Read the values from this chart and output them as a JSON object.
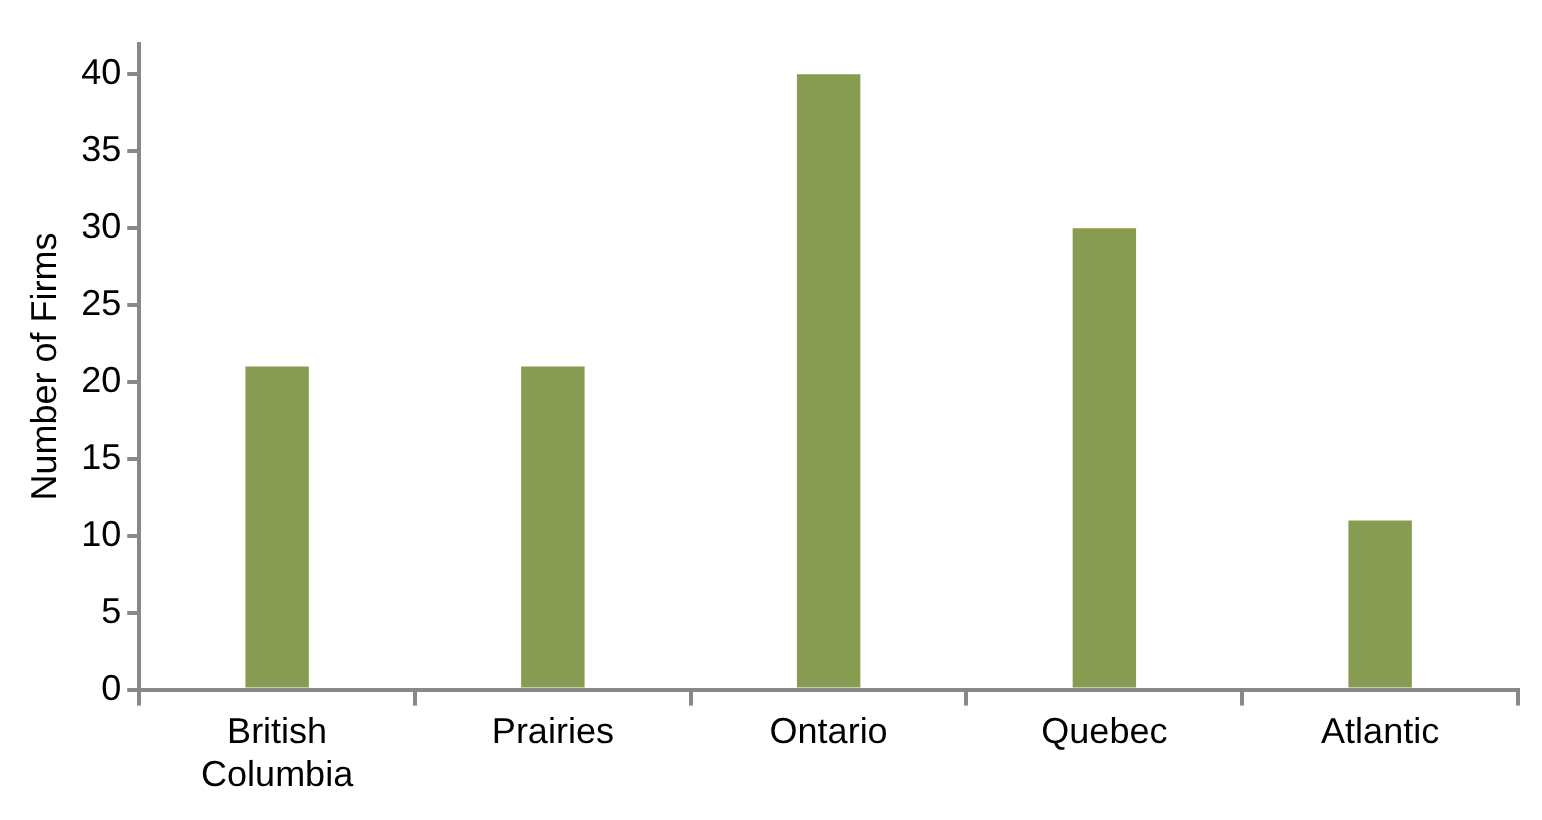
{
  "chart_data": {
    "type": "bar",
    "ylabel": "Number of Firms",
    "categories": [
      "British Columbia",
      "Prairies",
      "Ontario",
      "Quebec",
      "Atlantic"
    ],
    "values": [
      21,
      21,
      40,
      30,
      11
    ],
    "color": "#879c50",
    "ylim": [
      0,
      42
    ],
    "yticks": [
      0,
      5,
      10,
      15,
      20,
      25,
      30,
      35,
      40
    ],
    "grid": false,
    "legend": false
  }
}
